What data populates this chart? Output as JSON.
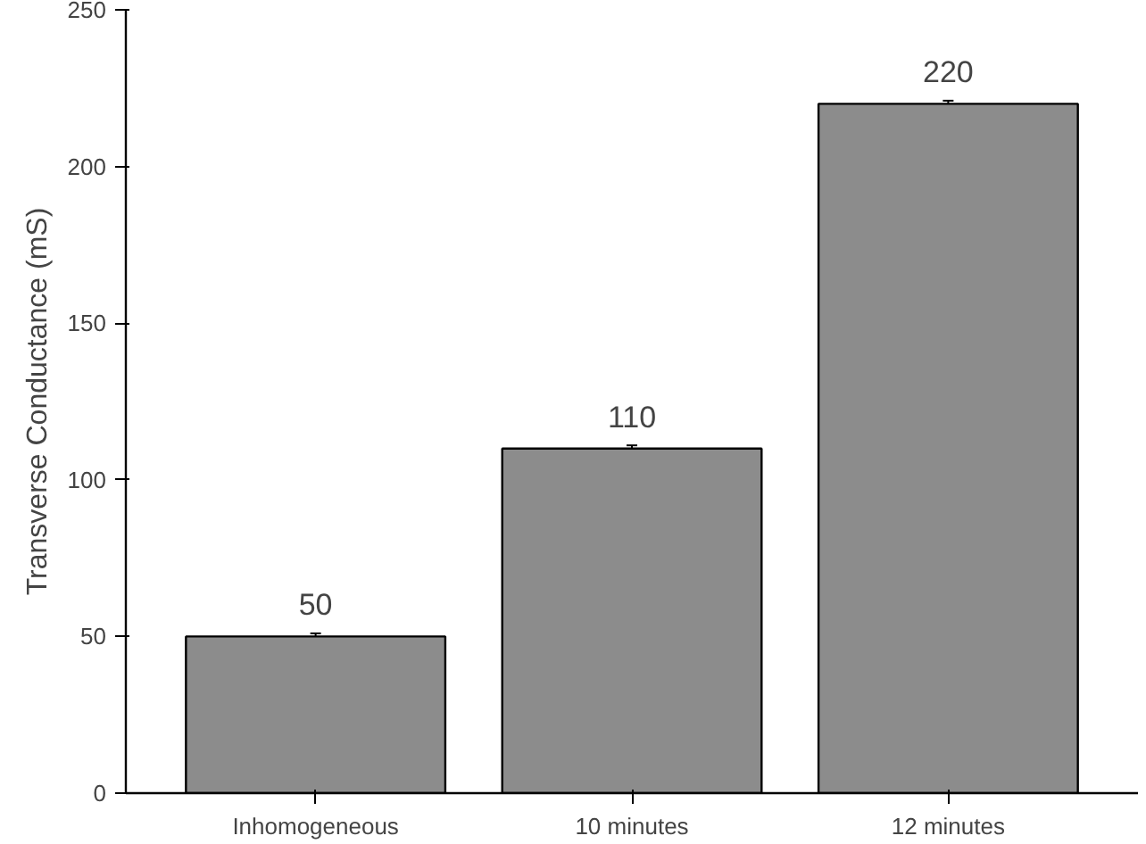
{
  "chart_data": {
    "type": "bar",
    "ylabel": "Transverse Conductance (mS)",
    "categories": [
      "Inhomogeneous",
      "10 minutes",
      "12 minutes"
    ],
    "values": [
      50,
      110,
      220
    ],
    "errors": [
      1,
      1,
      1
    ],
    "color": "#8c8c8c",
    "data_labels": true,
    "ylim": [
      0,
      250
    ],
    "yticks": [
      0,
      50,
      100,
      150,
      200,
      250
    ],
    "grid": false
  }
}
